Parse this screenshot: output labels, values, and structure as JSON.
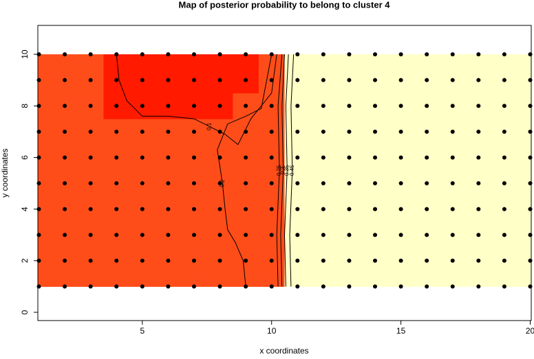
{
  "chart_data": {
    "type": "contour",
    "title": "Map of posterior probability to belong to cluster  4",
    "x_label": "x coordinates",
    "y_label": "y coordinates",
    "xlim": [
      0.96,
      20.04
    ],
    "ylim": [
      -0.32,
      11.12
    ],
    "xticks": [
      5,
      10,
      15,
      20
    ],
    "yticks": [
      0,
      2,
      4,
      6,
      8,
      10
    ],
    "x": [
      1,
      2,
      3,
      4,
      5,
      6,
      7,
      8,
      9,
      10,
      11,
      12,
      13,
      14,
      15,
      16,
      17,
      18,
      19,
      20
    ],
    "y": [
      1,
      2,
      3,
      4,
      5,
      6,
      7,
      8,
      9,
      10
    ],
    "z": [
      [
        0.15,
        0.15,
        0.15,
        0.15,
        0.15,
        0.15,
        0.15,
        0.15,
        0.15,
        0.15,
        0.9,
        0.9,
        0.9,
        0.9,
        0.9,
        0.9,
        0.9,
        0.9,
        0.9,
        0.9
      ],
      [
        0.15,
        0.15,
        0.15,
        0.15,
        0.15,
        0.15,
        0.15,
        0.15,
        0.15,
        0.15,
        0.9,
        0.9,
        0.9,
        0.9,
        0.9,
        0.9,
        0.9,
        0.9,
        0.9,
        0.9
      ],
      [
        0.15,
        0.15,
        0.15,
        0.15,
        0.15,
        0.15,
        0.15,
        0.15,
        0.15,
        0.15,
        0.9,
        0.9,
        0.9,
        0.9,
        0.9,
        0.9,
        0.9,
        0.9,
        0.9,
        0.9
      ],
      [
        0.15,
        0.15,
        0.15,
        0.15,
        0.15,
        0.15,
        0.15,
        0.15,
        0.15,
        0.15,
        0.9,
        0.9,
        0.9,
        0.9,
        0.9,
        0.9,
        0.9,
        0.9,
        0.9,
        0.9
      ],
      [
        0.15,
        0.15,
        0.15,
        0.15,
        0.15,
        0.15,
        0.15,
        0.15,
        0.15,
        0.15,
        0.9,
        0.9,
        0.9,
        0.9,
        0.9,
        0.9,
        0.9,
        0.9,
        0.9,
        0.9
      ],
      [
        0.15,
        0.15,
        0.15,
        0.15,
        0.15,
        0.15,
        0.15,
        0.15,
        0.15,
        0.15,
        0.9,
        0.9,
        0.9,
        0.9,
        0.9,
        0.9,
        0.9,
        0.9,
        0.9,
        0.9
      ],
      [
        0.15,
        0.15,
        0.15,
        0.15,
        0.15,
        0.15,
        0.15,
        0.15,
        0.15,
        0.15,
        0.9,
        0.9,
        0.9,
        0.9,
        0.9,
        0.9,
        0.9,
        0.9,
        0.9,
        0.9
      ],
      [
        0.15,
        0.15,
        0.15,
        0.05,
        0.05,
        0.05,
        0.05,
        0.05,
        0.15,
        0.15,
        0.9,
        0.9,
        0.9,
        0.9,
        0.9,
        0.9,
        0.9,
        0.9,
        0.9,
        0.9
      ],
      [
        0.15,
        0.15,
        0.15,
        0.05,
        0.05,
        0.05,
        0.05,
        0.05,
        0.05,
        0.15,
        0.9,
        0.9,
        0.9,
        0.9,
        0.9,
        0.9,
        0.9,
        0.9,
        0.9,
        0.9
      ],
      [
        0.15,
        0.15,
        0.15,
        0.05,
        0.05,
        0.05,
        0.05,
        0.05,
        0.05,
        0.15,
        0.9,
        0.9,
        0.9,
        0.9,
        0.9,
        0.9,
        0.9,
        0.9,
        0.9,
        0.9
      ]
    ],
    "z_breaks": [
      0,
      0.1,
      0.2,
      1
    ],
    "z_colors": [
      "#ff1a00",
      "#ff4d1a",
      "#ffffc8"
    ],
    "contours": [
      {
        "level": 0.1,
        "x": [
          4.0,
          4.1,
          4.4,
          5.0,
          6.0,
          7.0,
          7.6,
          8.2,
          8.7,
          9.2,
          10.0,
          10.2
        ],
        "y": [
          10,
          9.0,
          8.2,
          7.6,
          7.6,
          7.5,
          7.2,
          6.9,
          6.5,
          7.5,
          8.5,
          10
        ]
      },
      {
        "level": 0.2,
        "x": [
          9.0,
          8.9,
          8.6,
          8.3,
          8.2,
          8.1,
          7.9,
          8.3,
          9.0,
          9.6,
          10.0
        ],
        "y": [
          1.0,
          2.0,
          2.7,
          3.2,
          4.0,
          5.0,
          6.3,
          7.3,
          7.6,
          7.9,
          10
        ]
      },
      {
        "level": 0.25,
        "x": [
          10.25,
          10.2,
          10.3,
          10.25,
          10.4
        ],
        "y": [
          1,
          3,
          5.5,
          8,
          10
        ]
      },
      {
        "level": 0.3,
        "x": [
          10.4,
          10.35,
          10.45,
          10.4,
          10.5
        ],
        "y": [
          1,
          3,
          5.5,
          8,
          10
        ]
      },
      {
        "level": 0.35,
        "x": [
          10.55,
          10.5,
          10.6,
          10.55,
          10.65
        ],
        "y": [
          1,
          3,
          5.5,
          8,
          10
        ]
      },
      {
        "level": 0.45,
        "x": [
          10.75,
          10.7,
          10.8,
          10.75,
          10.85
        ],
        "y": [
          1,
          3,
          5.5,
          8,
          10
        ]
      }
    ]
  }
}
